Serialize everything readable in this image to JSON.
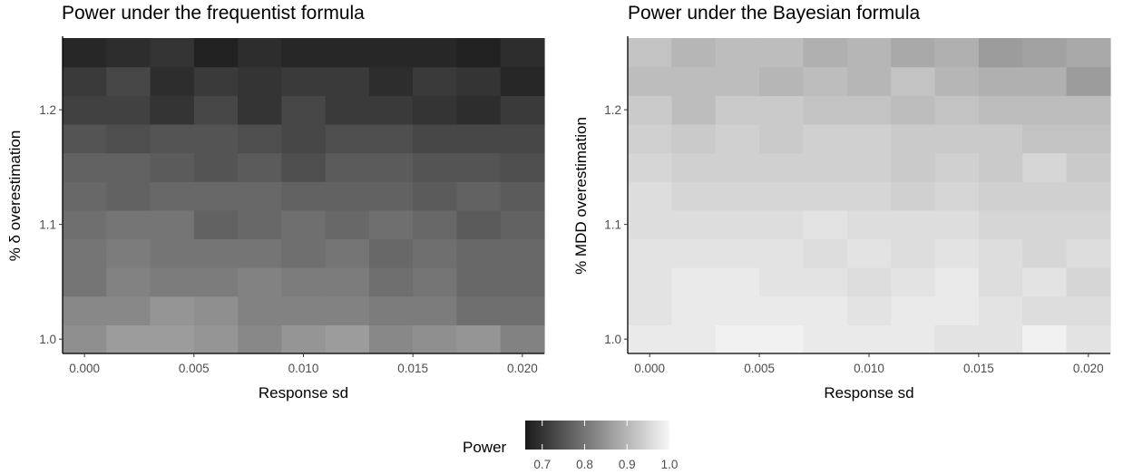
{
  "chart_data": [
    {
      "type": "heatmap",
      "title": "Power under the frequentist formula",
      "xlabel": "Response sd",
      "ylabel": "% δ overestimation",
      "x": [
        0.0,
        0.002,
        0.004,
        0.006,
        0.008,
        0.01,
        0.012,
        0.014,
        0.016,
        0.018,
        0.02
      ],
      "y": [
        1.0,
        1.025,
        1.05,
        1.075,
        1.1,
        1.125,
        1.15,
        1.175,
        1.2,
        1.225,
        1.25
      ],
      "xticks": [
        0.0,
        0.005,
        0.01,
        0.015,
        0.02
      ],
      "xtick_labels": [
        "0.000",
        "0.005",
        "0.010",
        "0.015",
        "0.020"
      ],
      "yticks": [
        1.0,
        1.1,
        1.2
      ],
      "ytick_labels": [
        "1.0",
        "1.1",
        "1.2"
      ],
      "xlim": [
        -0.001,
        0.021
      ],
      "ylim": [
        0.9875,
        1.2625
      ],
      "z": [
        [
          0.84,
          0.86,
          0.86,
          0.85,
          0.83,
          0.85,
          0.86,
          0.83,
          0.84,
          0.85,
          0.82
        ],
        [
          0.83,
          0.83,
          0.85,
          0.84,
          0.82,
          0.82,
          0.82,
          0.81,
          0.81,
          0.79,
          0.79
        ],
        [
          0.8,
          0.82,
          0.81,
          0.81,
          0.82,
          0.81,
          0.81,
          0.79,
          0.8,
          0.78,
          0.78
        ],
        [
          0.8,
          0.81,
          0.8,
          0.8,
          0.8,
          0.79,
          0.8,
          0.78,
          0.79,
          0.78,
          0.78
        ],
        [
          0.79,
          0.8,
          0.8,
          0.77,
          0.78,
          0.79,
          0.78,
          0.79,
          0.78,
          0.76,
          0.77
        ],
        [
          0.78,
          0.77,
          0.78,
          0.78,
          0.78,
          0.77,
          0.77,
          0.77,
          0.76,
          0.77,
          0.76
        ],
        [
          0.77,
          0.77,
          0.76,
          0.75,
          0.76,
          0.74,
          0.76,
          0.76,
          0.75,
          0.75,
          0.74
        ],
        [
          0.75,
          0.74,
          0.75,
          0.75,
          0.74,
          0.73,
          0.74,
          0.74,
          0.73,
          0.73,
          0.73
        ],
        [
          0.72,
          0.72,
          0.7,
          0.73,
          0.7,
          0.73,
          0.71,
          0.71,
          0.7,
          0.69,
          0.71
        ],
        [
          0.71,
          0.73,
          0.69,
          0.71,
          0.7,
          0.71,
          0.71,
          0.69,
          0.71,
          0.7,
          0.68
        ],
        [
          0.68,
          0.69,
          0.7,
          0.67,
          0.69,
          0.68,
          0.68,
          0.68,
          0.68,
          0.67,
          0.69
        ]
      ]
    },
    {
      "type": "heatmap",
      "title": "Power under the Bayesian formula",
      "xlabel": "Response sd",
      "ylabel": "% MDD overestimation",
      "x": [
        0.0,
        0.002,
        0.004,
        0.006,
        0.008,
        0.01,
        0.012,
        0.014,
        0.016,
        0.018,
        0.02
      ],
      "y": [
        1.0,
        1.025,
        1.05,
        1.075,
        1.1,
        1.125,
        1.15,
        1.175,
        1.2,
        1.225,
        1.25
      ],
      "xticks": [
        0.0,
        0.005,
        0.01,
        0.015,
        0.02
      ],
      "xtick_labels": [
        "0.000",
        "0.005",
        "0.010",
        "0.015",
        "0.020"
      ],
      "yticks": [
        1.0,
        1.1,
        1.2
      ],
      "ytick_labels": [
        "1.0",
        "1.1",
        "1.2"
      ],
      "xlim": [
        -0.001,
        0.021
      ],
      "ylim": [
        0.9875,
        1.2625
      ],
      "z": [
        [
          0.98,
          0.98,
          0.99,
          0.99,
          0.98,
          0.98,
          0.98,
          0.97,
          0.97,
          0.99,
          0.97
        ],
        [
          0.97,
          0.98,
          0.98,
          0.98,
          0.98,
          0.97,
          0.98,
          0.98,
          0.97,
          0.96,
          0.96
        ],
        [
          0.97,
          0.98,
          0.98,
          0.97,
          0.97,
          0.96,
          0.97,
          0.98,
          0.96,
          0.97,
          0.95
        ],
        [
          0.97,
          0.97,
          0.97,
          0.97,
          0.96,
          0.97,
          0.96,
          0.97,
          0.96,
          0.95,
          0.96
        ],
        [
          0.96,
          0.96,
          0.96,
          0.96,
          0.97,
          0.96,
          0.96,
          0.96,
          0.95,
          0.95,
          0.95
        ],
        [
          0.96,
          0.95,
          0.95,
          0.95,
          0.95,
          0.95,
          0.94,
          0.95,
          0.94,
          0.94,
          0.94
        ],
        [
          0.95,
          0.94,
          0.94,
          0.94,
          0.94,
          0.94,
          0.93,
          0.94,
          0.93,
          0.95,
          0.93
        ],
        [
          0.94,
          0.93,
          0.94,
          0.93,
          0.94,
          0.94,
          0.93,
          0.93,
          0.93,
          0.92,
          0.92
        ],
        [
          0.93,
          0.91,
          0.93,
          0.93,
          0.92,
          0.92,
          0.91,
          0.92,
          0.91,
          0.91,
          0.91
        ],
        [
          0.91,
          0.91,
          0.91,
          0.9,
          0.91,
          0.9,
          0.92,
          0.9,
          0.89,
          0.89,
          0.86
        ],
        [
          0.92,
          0.9,
          0.91,
          0.91,
          0.89,
          0.9,
          0.88,
          0.89,
          0.86,
          0.87,
          0.88
        ]
      ]
    }
  ],
  "legend": {
    "title": "Power",
    "ticks": [
      0.7,
      0.8,
      0.9,
      1.0
    ],
    "tick_labels": [
      "0.7",
      "0.8",
      "0.9",
      "1.0"
    ],
    "range": [
      0.66,
      1.0
    ],
    "colors": {
      "low": "#1a1a1a",
      "high": "#f7f7f7"
    }
  }
}
